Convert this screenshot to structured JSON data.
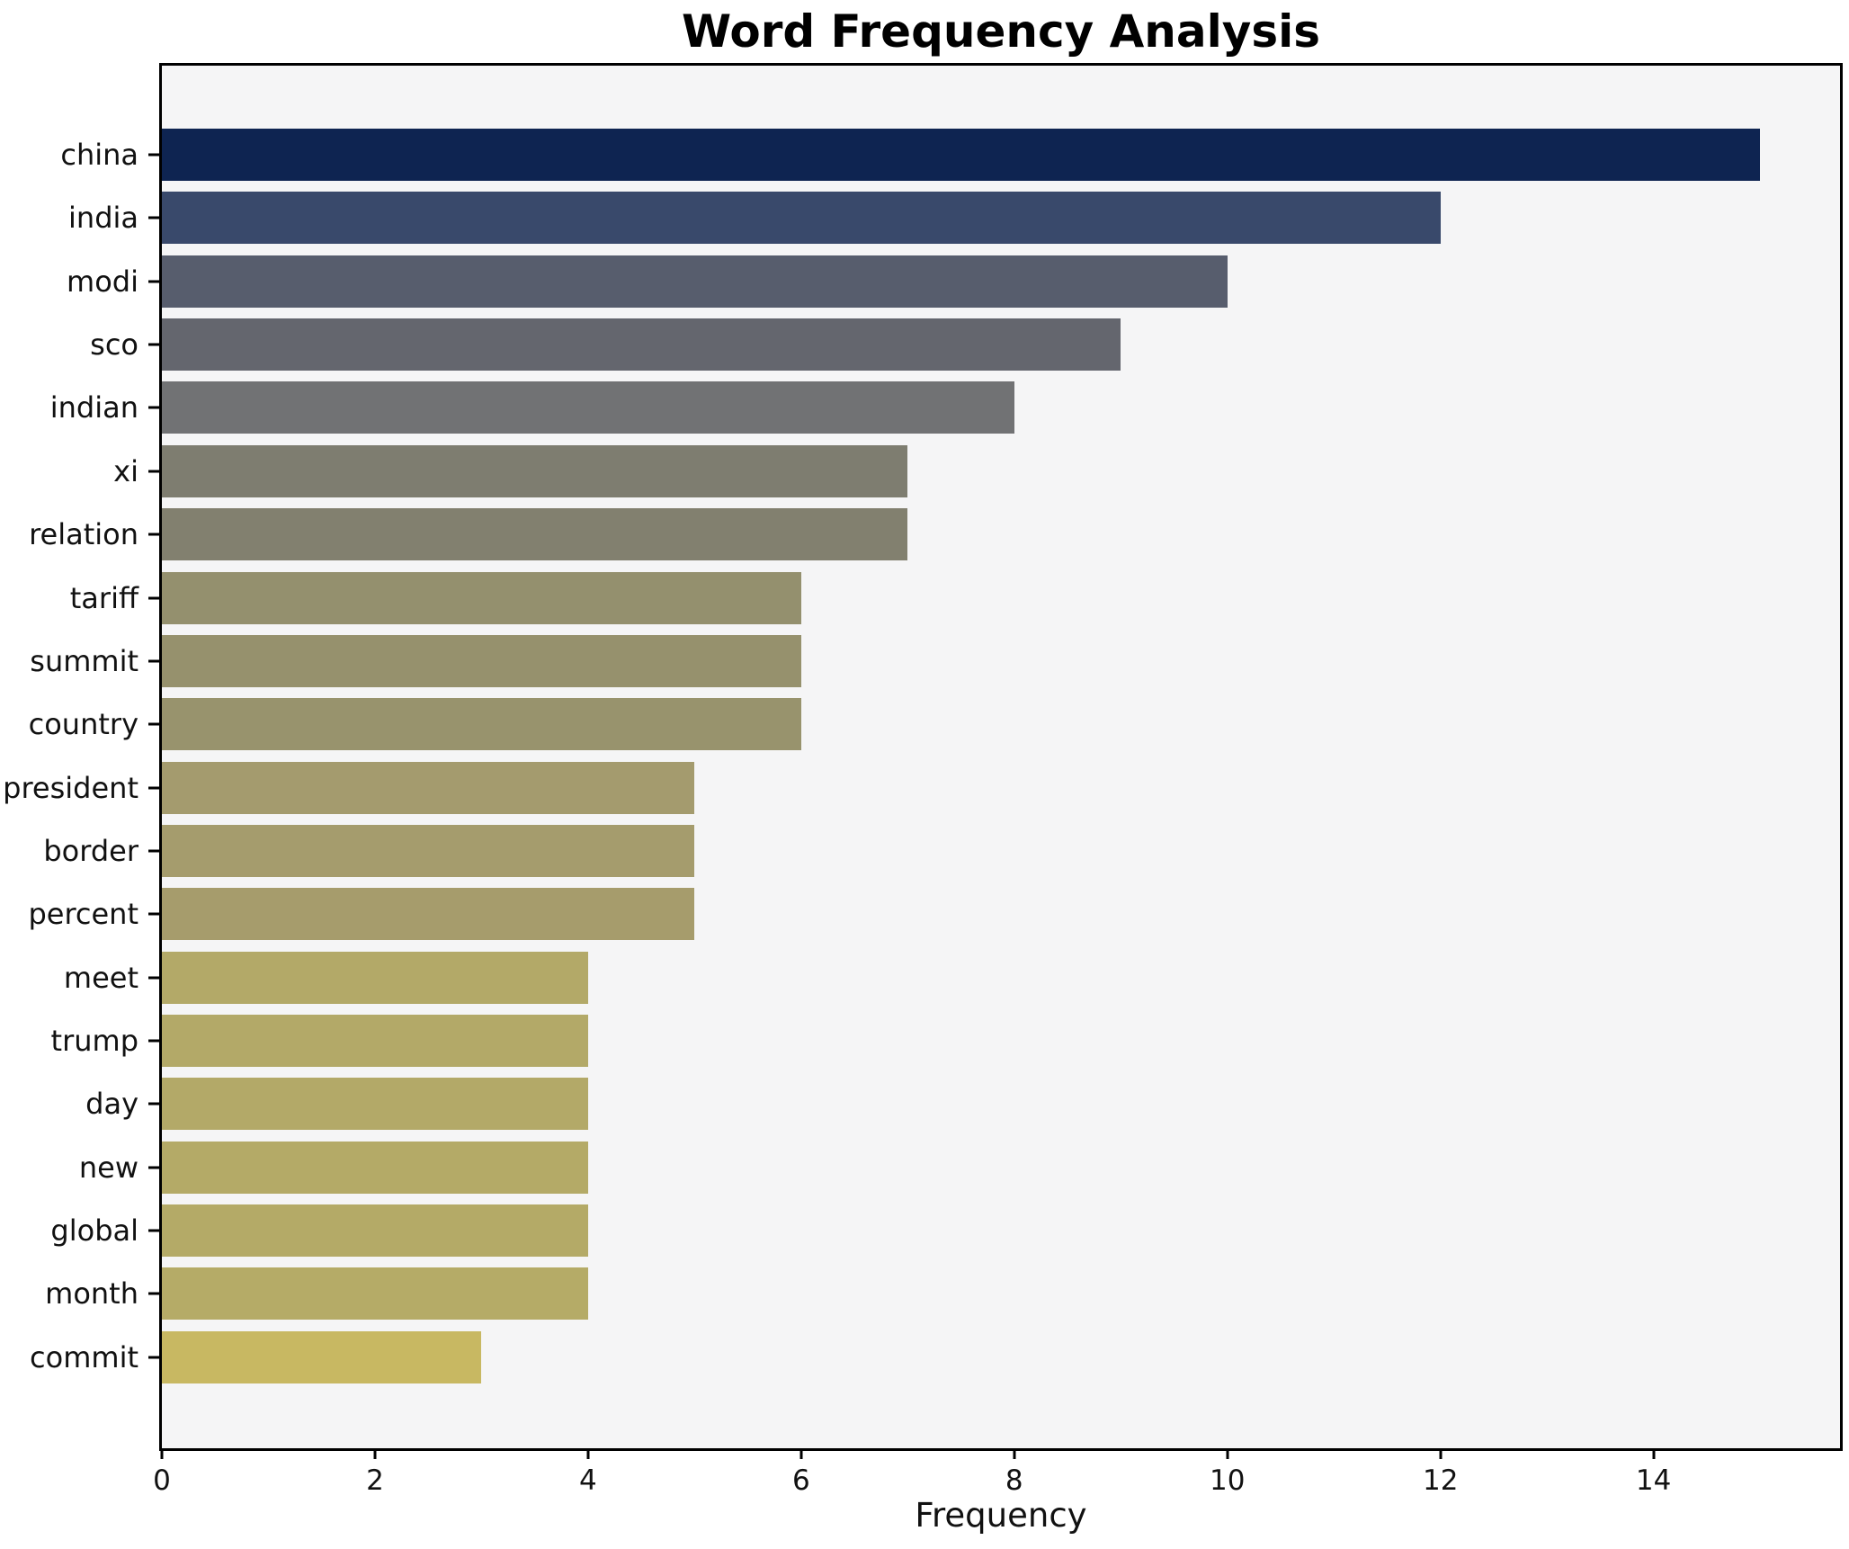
{
  "chart_data": {
    "type": "bar",
    "orientation": "horizontal",
    "title": "Word Frequency Analysis",
    "xlabel": "Frequency",
    "ylabel": "",
    "xlim": [
      0,
      15.75
    ],
    "xticks": [
      0,
      2,
      4,
      6,
      8,
      10,
      12,
      14
    ],
    "grid": false,
    "legend": null,
    "categories": [
      "china",
      "india",
      "modi",
      "sco",
      "indian",
      "xi",
      "relation",
      "tariff",
      "summit",
      "country",
      "president",
      "border",
      "percent",
      "meet",
      "trump",
      "day",
      "new",
      "global",
      "month",
      "commit"
    ],
    "values": [
      15,
      12,
      10,
      9,
      8,
      7,
      7,
      6,
      6,
      6,
      5,
      5,
      5,
      4,
      4,
      4,
      4,
      4,
      4,
      3
    ],
    "bar_colors": [
      "#0e2451",
      "#39496b",
      "#575d6d",
      "#64666e",
      "#717274",
      "#7e7d70",
      "#82806f",
      "#94906e",
      "#96916d",
      "#98936d",
      "#a49b6e",
      "#a59c6d",
      "#a69c6c",
      "#b3a968",
      "#b3a968",
      "#b3a968",
      "#b4aa67",
      "#b4aa67",
      "#b5ab67",
      "#c8b862"
    ],
    "colors": {
      "plot_background": "#f5f5f6",
      "figure_background": "#ffffff",
      "spine": "#000000",
      "text": "#111111"
    }
  }
}
